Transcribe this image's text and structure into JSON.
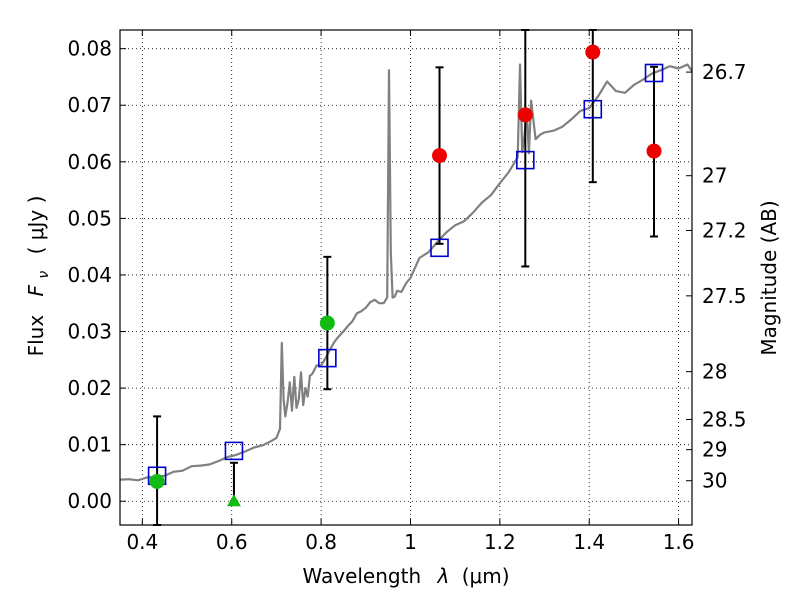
{
  "chart_data": {
    "type": "scatter",
    "xlabel_main": "Wavelength",
    "xlabel_symbol": "λ",
    "xlabel_unit": "(μm)",
    "ylabel_main": "Flux",
    "ylabel_symbol": "F",
    "ylabel_subscript": "ν",
    "ylabel_unit": "( μJy )",
    "y2label": "Magnitude (AB)",
    "xlim": [
      0.35,
      1.63
    ],
    "ylim": [
      -0.0042,
      0.0833
    ],
    "grid": true,
    "x_ticks": [
      {
        "value": 0.4,
        "label": "0.4"
      },
      {
        "value": 0.6,
        "label": "0.6"
      },
      {
        "value": 0.8,
        "label": "0.8"
      },
      {
        "value": 1.0,
        "label": "1"
      },
      {
        "value": 1.2,
        "label": "1.2"
      },
      {
        "value": 1.4,
        "label": "1.4"
      },
      {
        "value": 1.6,
        "label": "1.6"
      }
    ],
    "y_ticks": [
      {
        "value": 0.0,
        "label": "0.00"
      },
      {
        "value": 0.01,
        "label": "0.01"
      },
      {
        "value": 0.02,
        "label": "0.02"
      },
      {
        "value": 0.03,
        "label": "0.03"
      },
      {
        "value": 0.04,
        "label": "0.04"
      },
      {
        "value": 0.05,
        "label": "0.05"
      },
      {
        "value": 0.06,
        "label": "0.06"
      },
      {
        "value": 0.07,
        "label": "0.07"
      },
      {
        "value": 0.08,
        "label": "0.08"
      }
    ],
    "y2_ticks": [
      {
        "label": "26.7",
        "value": 26.7
      },
      {
        "label": "27",
        "value": 27.0
      },
      {
        "label": "27.2",
        "value": 27.2
      },
      {
        "label": "27.5",
        "value": 27.5
      },
      {
        "label": "28",
        "value": 28.0
      },
      {
        "label": "28.5",
        "value": 28.5
      },
      {
        "label": "29",
        "value": 29.0
      },
      {
        "label": "30",
        "value": 30.0
      }
    ],
    "colors": {
      "spectrum": "#808080",
      "model": "#0000cc",
      "red": "#ee0000",
      "green": "#11bb11",
      "errorbar": "#000000"
    },
    "spectrum": {
      "x": [
        0.35,
        0.37,
        0.39,
        0.41,
        0.43,
        0.45,
        0.47,
        0.49,
        0.51,
        0.53,
        0.55,
        0.57,
        0.59,
        0.61,
        0.63,
        0.65,
        0.67,
        0.69,
        0.7,
        0.708,
        0.712,
        0.716,
        0.72,
        0.725,
        0.73,
        0.735,
        0.74,
        0.745,
        0.75,
        0.755,
        0.76,
        0.765,
        0.77,
        0.775,
        0.78,
        0.79,
        0.8,
        0.81,
        0.82,
        0.83,
        0.84,
        0.85,
        0.86,
        0.87,
        0.88,
        0.89,
        0.9,
        0.91,
        0.92,
        0.93,
        0.94,
        0.948,
        0.952,
        0.956,
        0.96,
        0.965,
        0.97,
        0.98,
        0.99,
        1.0,
        1.02,
        1.04,
        1.06,
        1.08,
        1.1,
        1.12,
        1.14,
        1.16,
        1.18,
        1.2,
        1.22,
        1.24,
        1.245,
        1.25,
        1.255,
        1.26,
        1.265,
        1.27,
        1.28,
        1.29,
        1.3,
        1.32,
        1.34,
        1.36,
        1.38,
        1.4,
        1.42,
        1.44,
        1.46,
        1.48,
        1.5,
        1.52,
        1.54,
        1.56,
        1.58,
        1.6,
        1.62,
        1.63
      ],
      "y": [
        0.0038,
        0.0039,
        0.0037,
        0.0042,
        0.0043,
        0.0045,
        0.0052,
        0.0054,
        0.0062,
        0.0063,
        0.0065,
        0.0071,
        0.0078,
        0.0082,
        0.0088,
        0.0095,
        0.0099,
        0.0107,
        0.0112,
        0.0128,
        0.028,
        0.018,
        0.015,
        0.0175,
        0.021,
        0.016,
        0.022,
        0.0165,
        0.018,
        0.0228,
        0.017,
        0.02,
        0.0185,
        0.0222,
        0.0225,
        0.024,
        0.024,
        0.0253,
        0.0268,
        0.0282,
        0.0292,
        0.03,
        0.031,
        0.0318,
        0.0332,
        0.0336,
        0.0342,
        0.0352,
        0.0356,
        0.035,
        0.035,
        0.036,
        0.0762,
        0.044,
        0.036,
        0.0362,
        0.0372,
        0.037,
        0.0385,
        0.0395,
        0.043,
        0.044,
        0.0458,
        0.0475,
        0.0488,
        0.0495,
        0.051,
        0.0528,
        0.0541,
        0.0562,
        0.0582,
        0.0608,
        0.0772,
        0.0617,
        0.0645,
        0.0692,
        0.0615,
        0.0708,
        0.064,
        0.0648,
        0.0652,
        0.0655,
        0.0662,
        0.0675,
        0.069,
        0.0695,
        0.0716,
        0.0742,
        0.0725,
        0.0722,
        0.0736,
        0.0745,
        0.0756,
        0.0762,
        0.0769,
        0.0765,
        0.0772,
        0.076
      ]
    },
    "model": {
      "name": "",
      "x": [
        0.433,
        0.605,
        0.814,
        1.065,
        1.257,
        1.408,
        1.545
      ],
      "y": [
        0.0045,
        0.0089,
        0.0253,
        0.0448,
        0.0603,
        0.0693,
        0.0757
      ]
    },
    "observed": [
      {
        "x": 0.433,
        "y": 0.0035,
        "err_low": -0.0042,
        "err_high": 0.015,
        "color": "green",
        "marker": "circle"
      },
      {
        "x": 0.605,
        "y": 0.0,
        "err_low": 0.0,
        "err_high": 0.0068,
        "color": "green",
        "marker": "triangle"
      },
      {
        "x": 0.814,
        "y": 0.0315,
        "err_low": 0.0198,
        "err_high": 0.0432,
        "color": "green",
        "marker": "circle"
      },
      {
        "x": 1.065,
        "y": 0.0611,
        "err_low": 0.0455,
        "err_high": 0.0767,
        "color": "red",
        "marker": "circle"
      },
      {
        "x": 1.257,
        "y": 0.0683,
        "err_low": 0.0415,
        "err_high": 0.0833,
        "color": "red",
        "marker": "circle"
      },
      {
        "x": 1.408,
        "y": 0.0794,
        "err_low": 0.0564,
        "err_high": 0.0833,
        "color": "red",
        "marker": "circle"
      },
      {
        "x": 1.545,
        "y": 0.0619,
        "err_low": 0.0468,
        "err_high": 0.0768,
        "color": "red",
        "marker": "circle"
      }
    ]
  }
}
